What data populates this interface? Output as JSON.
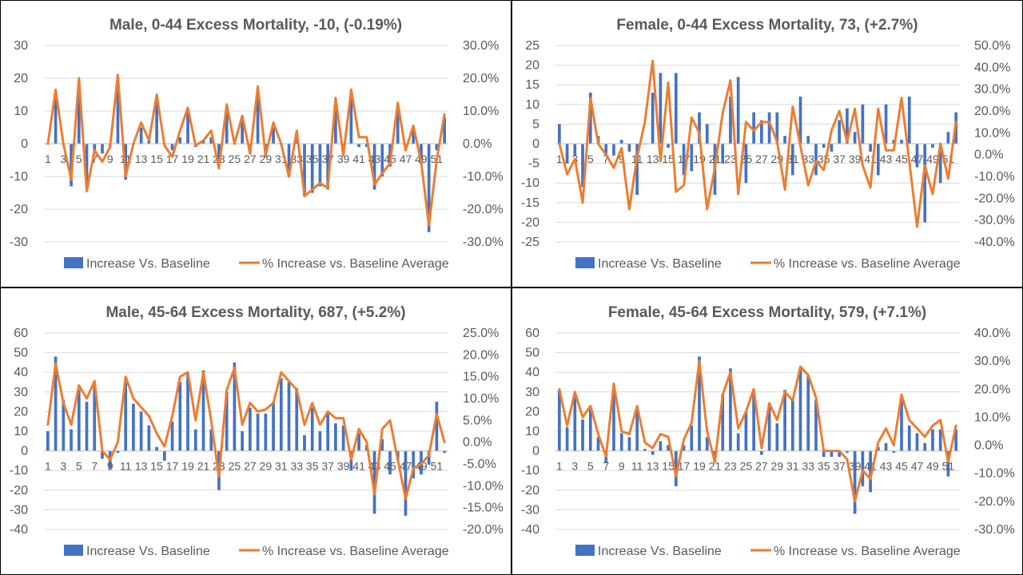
{
  "colors": {
    "bar": "#4472C4",
    "line": "#ED7D31",
    "grid": "#D9D9D9",
    "text": "#595959",
    "divider": "#000000"
  },
  "legend": {
    "bar_label": "Increase Vs. Baseline",
    "line_label": "% Increase vs. Baseline Average"
  },
  "chart_data": [
    {
      "type": "bar",
      "title": "Male, 0-44 Excess Mortality, -10, (-0.19%)",
      "x": [
        1,
        2,
        3,
        4,
        5,
        6,
        7,
        8,
        9,
        10,
        11,
        12,
        13,
        14,
        15,
        16,
        17,
        18,
        19,
        20,
        21,
        22,
        23,
        24,
        25,
        26,
        27,
        28,
        29,
        30,
        31,
        32,
        33,
        34,
        35,
        36,
        37,
        38,
        39,
        40,
        41,
        42,
        43,
        44,
        45,
        46,
        47,
        48,
        49,
        50,
        51,
        52
      ],
      "x_tick_labels": [
        "1",
        "3",
        "5",
        "7",
        "9",
        "11",
        "13",
        "15",
        "17",
        "19",
        "21",
        "23",
        "25",
        "27",
        "29",
        "31",
        "33",
        "35",
        "37",
        "39",
        "41",
        "43",
        "45",
        "47",
        "49",
        "51"
      ],
      "y_left": {
        "min": -30,
        "max": 30,
        "ticks": [
          "30",
          "20",
          "10",
          "0",
          "-10",
          "-20",
          "-30"
        ]
      },
      "y_right": {
        "min": -30,
        "max": 30,
        "ticks": [
          "30.0%",
          "20.0%",
          "10.0%",
          "0.0%",
          "-10.0%",
          "-20.0%",
          "-30.0%"
        ]
      },
      "grid": true,
      "legend_position": "bottom",
      "series": [
        {
          "name": "Increase Vs. Baseline",
          "type": "bar",
          "axis": "left",
          "values": [
            0,
            15,
            0,
            -13,
            19,
            -13,
            -2,
            -3,
            -1,
            20,
            -11,
            0,
            5,
            2,
            13,
            0,
            -2,
            2,
            10,
            -1,
            1,
            2,
            -6,
            11,
            0,
            7,
            -3,
            16,
            -4,
            5,
            0,
            -10,
            3,
            -16,
            -15,
            -13,
            -14,
            13,
            -3,
            14,
            -1,
            -1,
            -14,
            -10,
            -7,
            12,
            -2,
            4,
            -6,
            -27,
            -2,
            8
          ]
        },
        {
          "name": "% Increase vs. Baseline Average",
          "type": "line",
          "axis": "right",
          "values": [
            0,
            16.5,
            0,
            -11,
            20,
            -14.5,
            -2,
            -5.5,
            -1,
            21,
            -10,
            0,
            6.5,
            1,
            15,
            -0.5,
            -4,
            4,
            11,
            -0.5,
            1,
            4,
            -7.5,
            12,
            0,
            8.5,
            -3,
            17.5,
            -3.5,
            6.5,
            0,
            -10,
            4,
            -16,
            -14,
            -12,
            -13.5,
            14,
            -3.5,
            16.5,
            2,
            2,
            -12.5,
            -9,
            -6,
            12.5,
            -2,
            5.5,
            -5.5,
            -25,
            -5,
            9
          ]
        }
      ]
    },
    {
      "type": "bar",
      "title": "Female, 0-44 Excess Mortality, 73, (+2.7%)",
      "x": [
        1,
        2,
        3,
        4,
        5,
        6,
        7,
        8,
        9,
        10,
        11,
        12,
        13,
        14,
        15,
        16,
        17,
        18,
        19,
        20,
        21,
        22,
        23,
        24,
        25,
        26,
        27,
        28,
        29,
        30,
        31,
        32,
        33,
        34,
        35,
        36,
        37,
        38,
        39,
        40,
        41,
        42,
        43,
        44,
        45,
        46,
        47,
        48,
        49,
        50,
        51,
        52
      ],
      "x_tick_labels": [
        "1",
        "3",
        "5",
        "7",
        "9",
        "11",
        "13",
        "15",
        "17",
        "19",
        "21",
        "23",
        "25",
        "27",
        "29",
        "31",
        "33",
        "35",
        "37",
        "39",
        "41",
        "43",
        "45",
        "47",
        "49",
        "51"
      ],
      "y_left": {
        "min": -25,
        "max": 25,
        "ticks": [
          "25",
          "20",
          "15",
          "10",
          "5",
          "0",
          "-5",
          "-10",
          "-15",
          "-20",
          "-25"
        ]
      },
      "y_right": {
        "min": -40,
        "max": 50,
        "ticks": [
          "50.0%",
          "40.0%",
          "30.0%",
          "20.0%",
          "10.0%",
          "0.0%",
          "-10.0%",
          "-20.0%",
          "-30.0%",
          "-40.0%"
        ]
      },
      "grid": true,
      "legend_position": "bottom",
      "series": [
        {
          "name": "Increase Vs. Baseline",
          "type": "bar",
          "axis": "left",
          "values": [
            5,
            -5,
            -3,
            -11,
            13,
            2,
            -3,
            -3,
            1,
            -2,
            -13,
            0,
            13,
            18,
            -1,
            18,
            -8,
            -7,
            8,
            5,
            -13,
            -5,
            12,
            17,
            -10,
            8,
            6,
            8,
            8,
            2,
            -8,
            12,
            2,
            -8,
            -1,
            -2,
            6,
            9,
            3,
            10,
            -2,
            -8,
            10,
            1,
            1,
            12,
            -6,
            -20,
            -1,
            -10,
            3,
            8
          ]
        },
        {
          "name": "% Increase vs. Baseline Average",
          "type": "line",
          "axis": "right",
          "values": [
            5,
            -9,
            -2,
            -22,
            26,
            5,
            0,
            -6,
            3,
            -25,
            -1,
            15,
            43,
            -3,
            33,
            -17,
            -14,
            17,
            10,
            -25,
            -6,
            19,
            34,
            -18,
            15,
            11,
            15,
            15,
            6,
            -16,
            22,
            4,
            -14,
            -3,
            -7,
            11,
            20,
            6,
            21,
            -5,
            -15,
            21,
            2,
            2,
            26,
            -3,
            -33,
            -5,
            -18,
            5,
            -11,
            15
          ]
        }
      ]
    },
    {
      "type": "bar",
      "title": "Male, 45-64 Excess Mortality, 687, (+5.2%)",
      "x": [
        1,
        2,
        3,
        4,
        5,
        6,
        7,
        8,
        9,
        10,
        11,
        12,
        13,
        14,
        15,
        16,
        17,
        18,
        19,
        20,
        21,
        22,
        23,
        24,
        25,
        26,
        27,
        28,
        29,
        30,
        31,
        32,
        33,
        34,
        35,
        36,
        37,
        38,
        39,
        40,
        41,
        42,
        43,
        44,
        45,
        46,
        47,
        48,
        49,
        50,
        51,
        52
      ],
      "x_tick_labels": [
        "1",
        "3",
        "5",
        "7",
        "9",
        "11",
        "13",
        "15",
        "17",
        "19",
        "21",
        "23",
        "25",
        "27",
        "29",
        "31",
        "33",
        "35",
        "37",
        "39",
        "41",
        "43",
        "45",
        "47",
        "49",
        "51"
      ],
      "y_left": {
        "min": -40,
        "max": 60,
        "ticks": [
          "60",
          "50",
          "40",
          "30",
          "20",
          "10",
          "0",
          "-10",
          "-20",
          "-30",
          "-40"
        ]
      },
      "y_right": {
        "min": -20,
        "max": 25,
        "ticks": [
          "25.0%",
          "20.0%",
          "15.0%",
          "10.0%",
          "5.0%",
          "0.0%",
          "-5.0%",
          "-10.0%",
          "-15.0%",
          "-20.0%"
        ]
      },
      "grid": true,
      "legend_position": "bottom",
      "series": [
        {
          "name": "Increase Vs. Baseline",
          "type": "bar",
          "axis": "left",
          "values": [
            10,
            48,
            26,
            11,
            31,
            25,
            35,
            -4,
            -9,
            -1,
            35,
            24,
            20,
            13,
            2,
            -5,
            15,
            35,
            40,
            11,
            41,
            11,
            -20,
            30,
            45,
            10,
            22,
            19,
            19,
            25,
            37,
            35,
            32,
            8,
            22,
            10,
            19,
            14,
            13,
            -10,
            9,
            3,
            -32,
            6,
            -12,
            -5,
            -33,
            -14,
            -12,
            -7,
            25,
            -1
          ]
        },
        {
          "name": "% Increase vs. Baseline Average",
          "type": "line",
          "axis": "right",
          "values": [
            4,
            18,
            9,
            4,
            13,
            10,
            14,
            -2,
            -4,
            0,
            15,
            10,
            8,
            6,
            2,
            -1,
            6,
            15,
            16,
            5,
            16,
            5,
            -8,
            12,
            17,
            4,
            9,
            7,
            7.5,
            9,
            16,
            14,
            12,
            4,
            9,
            4,
            7,
            5.5,
            5.5,
            -4,
            3,
            0,
            -12,
            3,
            5,
            -4,
            -13,
            -6,
            -5,
            -3,
            6.5,
            0
          ]
        }
      ]
    },
    {
      "type": "bar",
      "title": "Female, 45-64 Excess Mortality, 579, (+7.1%)",
      "x": [
        1,
        2,
        3,
        4,
        5,
        6,
        7,
        8,
        9,
        10,
        11,
        12,
        13,
        14,
        15,
        16,
        17,
        18,
        19,
        20,
        21,
        22,
        23,
        24,
        25,
        26,
        27,
        28,
        29,
        30,
        31,
        32,
        33,
        34,
        35,
        36,
        37,
        38,
        39,
        40,
        41,
        42,
        43,
        44,
        45,
        46,
        47,
        48,
        49,
        50,
        51,
        52
      ],
      "x_tick_labels": [
        "1",
        "3",
        "5",
        "7",
        "9",
        "11",
        "13",
        "15",
        "17",
        "19",
        "21",
        "23",
        "25",
        "27",
        "29",
        "31",
        "33",
        "35",
        "37",
        "39",
        "41",
        "43",
        "45",
        "47",
        "49",
        "51"
      ],
      "y_left": {
        "min": -40,
        "max": 60,
        "ticks": [
          "60",
          "50",
          "40",
          "30",
          "20",
          "10",
          "0",
          "-10",
          "-20",
          "-30",
          "-40"
        ]
      },
      "y_right": {
        "min": -30,
        "max": 40,
        "ticks": [
          "40.0%",
          "30.0%",
          "20.0%",
          "10.0%",
          "0.0%",
          "-10.0%",
          "-20.0%",
          "-30.0%"
        ]
      },
      "grid": true,
      "legend_position": "bottom",
      "series": [
        {
          "name": "Increase Vs. Baseline",
          "type": "bar",
          "axis": "left",
          "values": [
            31,
            12,
            28,
            16,
            22,
            7,
            -6,
            32,
            9,
            7,
            21,
            1,
            -2,
            5,
            3,
            -18,
            3,
            13,
            48,
            7,
            -5,
            29,
            42,
            9,
            20,
            30,
            -2,
            24,
            14,
            31,
            27,
            42,
            38,
            26,
            -3,
            -3,
            -3,
            -1,
            -32,
            -18,
            -21,
            2,
            4,
            -1,
            26,
            13,
            9,
            4,
            11,
            11,
            -13,
            11
          ]
        },
        {
          "name": "% Increase vs. Baseline Average",
          "type": "line",
          "axis": "right",
          "values": [
            20,
            7,
            19,
            10,
            14,
            4,
            -4,
            22,
            5,
            4,
            14,
            1,
            -1,
            4,
            3,
            -11,
            2,
            8,
            30,
            5,
            -6,
            18,
            26,
            6,
            12,
            20,
            -1,
            15,
            9,
            19,
            16,
            28,
            25,
            17,
            -2,
            -2,
            -2,
            -5,
            -20,
            -9,
            -12,
            1,
            6,
            0,
            18,
            9,
            6,
            3,
            7,
            9,
            -6,
            7
          ]
        }
      ]
    }
  ]
}
